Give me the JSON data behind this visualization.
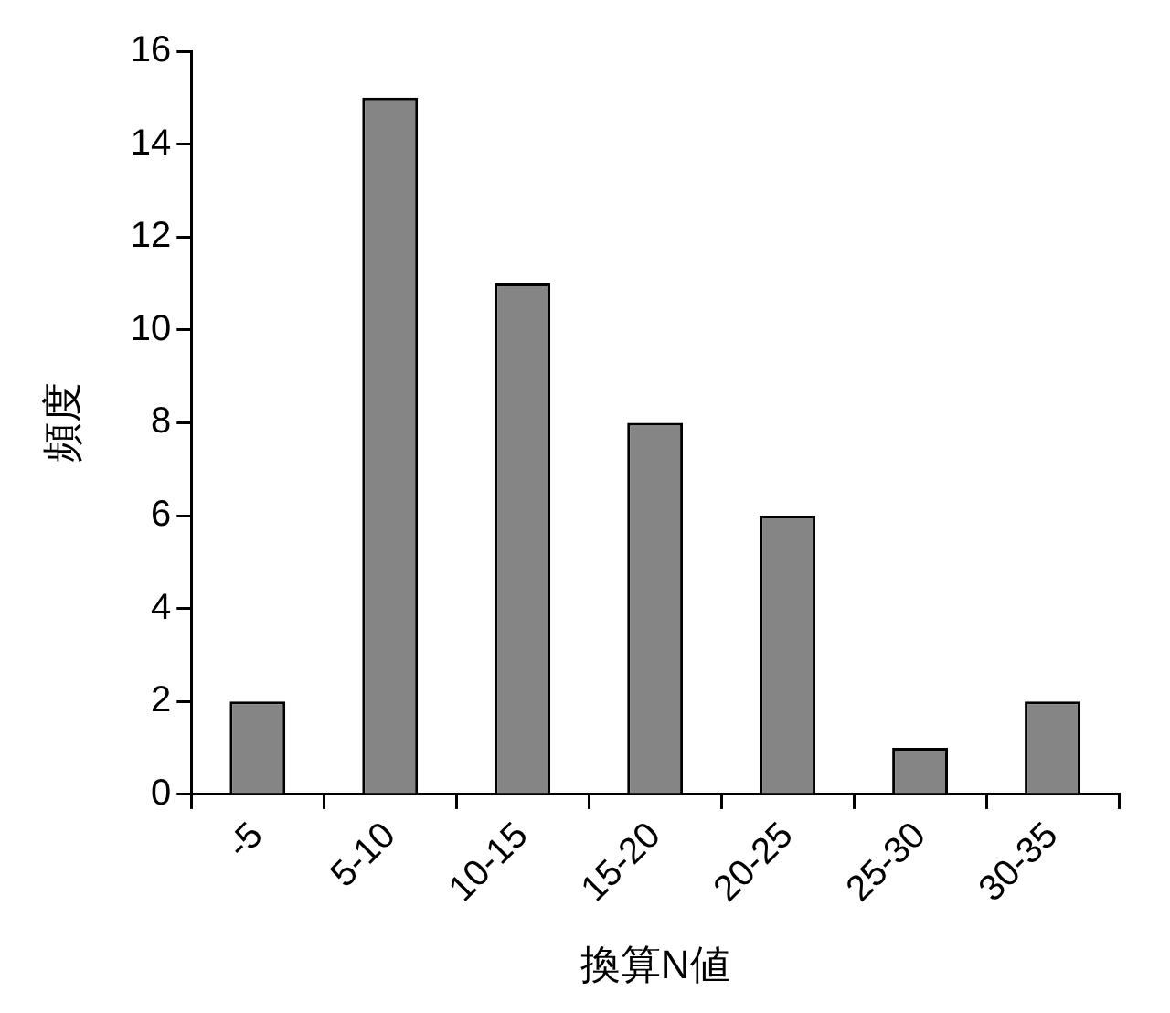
{
  "chart_data": {
    "type": "bar",
    "xlabel": "換算N値",
    "ylabel": "頻度",
    "categories": [
      "-5",
      "5-10",
      "10-15",
      "15-20",
      "20-25",
      "25-30",
      "30-35"
    ],
    "values": [
      2,
      15,
      11,
      8,
      6,
      1,
      2
    ],
    "color": "#858585",
    "ylim": [
      0,
      16
    ],
    "yticks": [
      0,
      2,
      4,
      6,
      8,
      10,
      12,
      14,
      16
    ],
    "grid": false,
    "legend": false
  }
}
